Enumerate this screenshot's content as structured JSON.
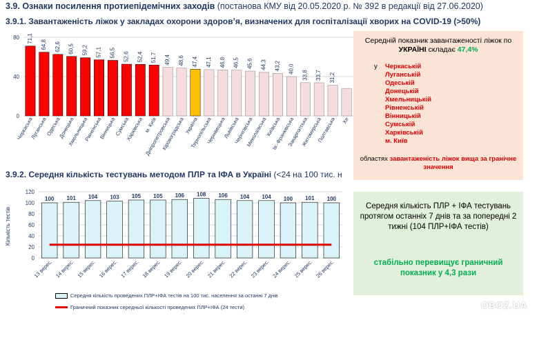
{
  "header": {
    "title_bold": "3.9.  Ознаки посилення протиепідемічних заходів",
    "title_normal": " (постанова КМУ від 20.05.2020 р. № 392 в редакції від 27.06.2020)"
  },
  "section1": {
    "title": "3.9.1.     Завантаженість ліжок у закладах охорони здоров’я, визначених для госпіталізації хворих на COVID-19 (>50%)"
  },
  "section2": {
    "title_bold": "3.9.2.    Середня кількість тестувань методом ПЛР та ІФА в Україні",
    "title_normal": " (<24 на 100 тис. н"
  },
  "panel1": {
    "line1": "Середній показник завантаженості ліжок по",
    "line2_bold": "УКРАЇНІ",
    "line2_normal": " складає ",
    "value": "47,4%",
    "list_prefix": "у",
    "regions": [
      "Черкаській",
      "Луганській",
      "Одеській",
      "Донецькій",
      "Хмельницькій",
      "Рівненській",
      "Вінницькій",
      "Сумській",
      "Харківській",
      "м. Київ"
    ],
    "bottom_normal": "областях ",
    "bottom_red": "завантаженість ліжок вища за гранічне значення"
  },
  "panel2": {
    "text": "Середня кількість ПЛР + ІФА тестувань протягом останніх 7 днів та за попередні 2 тижні (104 ПЛР+ІФА тестів)",
    "highlight": "стабільно перевищує граничний показник у 4,3 рази"
  },
  "legend": {
    "bars": "Середня кількість проведених ПЛР+ІФА тестів на 100 тис. населення за останні 7 днів",
    "line": "Граничний показник середньої кількості проведених ПЛР+ІФА (24 тести)"
  },
  "watermark": "OBOZ.UA",
  "colors": {
    "above": "#ff0000",
    "below": "#f6dcdc",
    "ukraine": "#ffc000",
    "test_bar": "#d9f3f8",
    "threshold": "#e00000",
    "text": "#1f3864"
  },
  "chart_data": [
    {
      "type": "bar",
      "title": "",
      "ylim": [
        0,
        80
      ],
      "yticks": [
        0,
        40,
        80
      ],
      "categories": [
        "Черкаська",
        "Луганська",
        "Одеська",
        "Донецька",
        "Хмельницька",
        "Рівненська",
        "Вінницька",
        "Сумська",
        "Харківська",
        "м. Київ",
        "Дніпропетровська",
        "Кіровоградська",
        "Україна",
        "Тернопільська",
        "Чернівецька",
        "Львівська",
        "Чернігівська",
        "Миколаївська",
        "Київська",
        "Ів.-Франківська",
        "Закарпатська",
        "Житомирська",
        "Полтавська",
        "Хе"
      ],
      "values": [
        71.1,
        64.8,
        62.6,
        60.5,
        59.2,
        57.1,
        56.5,
        52.6,
        52.4,
        51.7,
        49.4,
        48.6,
        47.4,
        47.1,
        46.8,
        46.5,
        45.6,
        44.3,
        43.2,
        40.0,
        33.8,
        33.7,
        31.2,
        28.0
      ],
      "labels": [
        "71,1",
        "64,8",
        "62,6",
        "60,5",
        "59,2",
        "57,1",
        "56,5",
        "52,6",
        "52,4",
        "51,7",
        "49,4",
        "48,6",
        "47,4",
        "47,1",
        "46,8",
        "46,5",
        "45,6",
        "44,3",
        "43,2",
        "40,0",
        "33,8",
        "33,7",
        "31,2",
        ""
      ],
      "groups": [
        "above",
        "above",
        "above",
        "above",
        "above",
        "above",
        "above",
        "above",
        "above",
        "above",
        "below",
        "below",
        "ukraine",
        "below",
        "below",
        "below",
        "below",
        "below",
        "below",
        "below",
        "below",
        "below",
        "below",
        "below"
      ],
      "grid": true
    },
    {
      "type": "bar",
      "title": "",
      "ylabel": "Кількість тестів",
      "ylim": [
        0,
        120
      ],
      "yticks": [
        0,
        20,
        40,
        60,
        80,
        100,
        120
      ],
      "categories": [
        "13 верес.",
        "14 верес.",
        "15 верес.",
        "16 верес.",
        "17 верес.",
        "18 верес.",
        "19 верес.",
        "20 верес.",
        "21 верес.",
        "22 верес.",
        "23 верес.",
        "24 верес.",
        "25 верес.",
        "26 верес."
      ],
      "series": [
        {
          "name": "Середня кількість проведених ПЛР+ІФА тестів на 100 тис. населення за останні 7 днів",
          "values": [
            100,
            101,
            104,
            103,
            105,
            105,
            106,
            108,
            106,
            104,
            104,
            100,
            101,
            100
          ]
        },
        {
          "name": "Граничний показник середньої кількості проведених ПЛР+ІФА (24 тести)",
          "type": "line",
          "values": [
            24,
            24,
            24,
            24,
            24,
            24,
            24,
            24,
            24,
            24,
            24,
            24,
            24,
            24
          ]
        }
      ],
      "grid": true,
      "legend": "bottom"
    }
  ]
}
